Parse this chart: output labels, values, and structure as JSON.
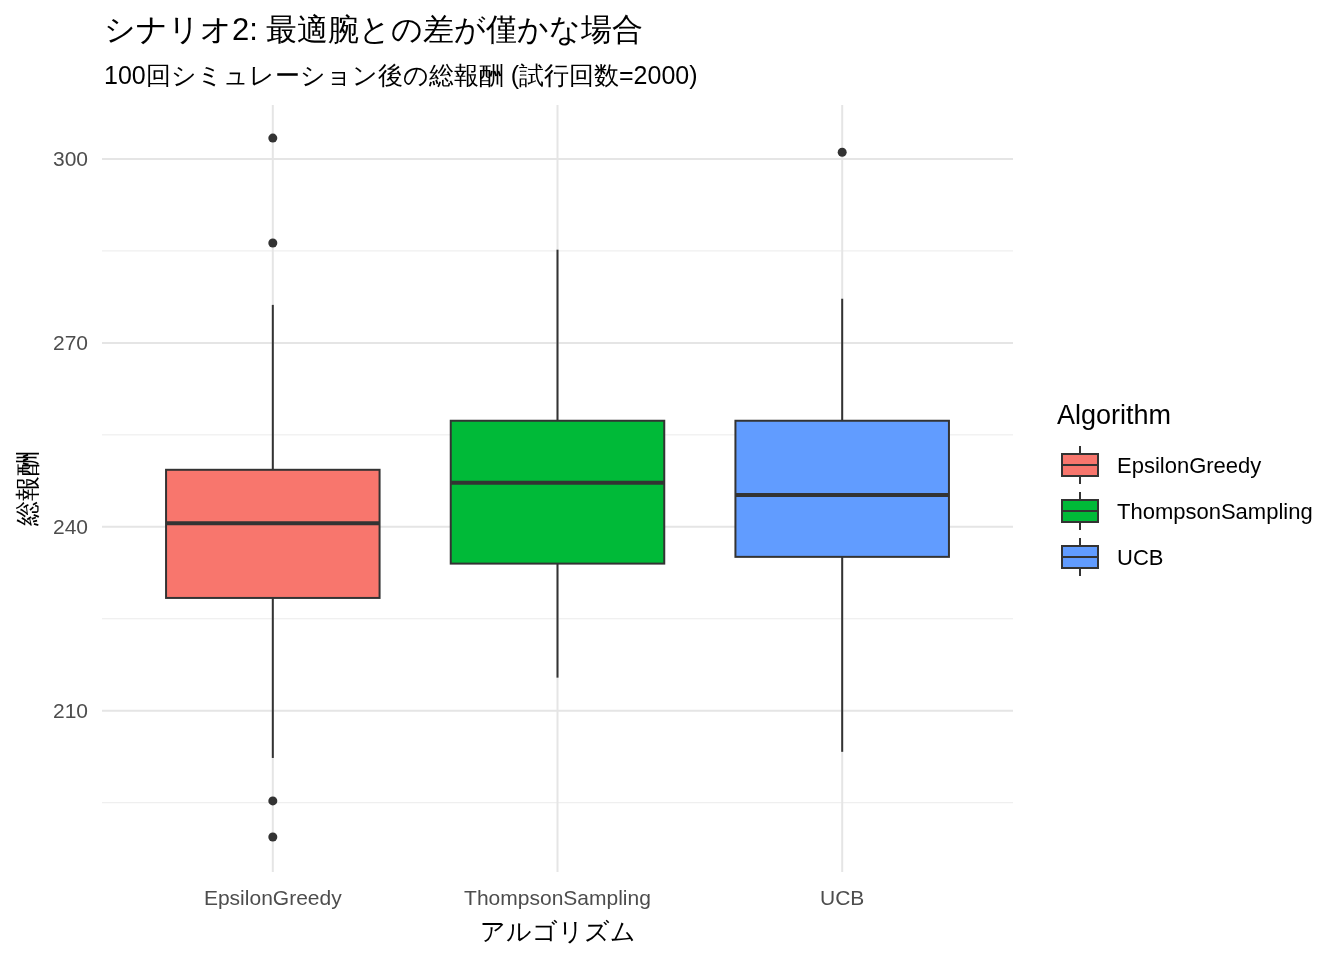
{
  "chart_data": {
    "type": "box",
    "title": "シナリオ2: 最適腕との差が僅かな場合",
    "subtitle": "100回シミュレーション後の総報酬 (試行回数=2000)",
    "xlabel": "アルゴリズム",
    "ylabel": "総報酬",
    "legend_title": "Algorithm",
    "categories": [
      "EpsilonGreedy",
      "ThompsonSampling",
      "UCB"
    ],
    "series": [
      {
        "name": "EpsilonGreedy",
        "color": "#f8766d",
        "boxes": [
          {
            "low": 202.3,
            "q1": 228.4,
            "median": 240.6,
            "q3": 249.3,
            "high": 276.2,
            "outliers": [
              303.4,
              286.3,
              195.3,
              189.4
            ]
          },
          null,
          null
        ]
      },
      {
        "name": "ThompsonSampling",
        "color": "#00ba38",
        "boxes": [
          null,
          {
            "low": 215.4,
            "q1": 234.0,
            "median": 247.2,
            "q3": 257.3,
            "high": 285.2
          },
          null
        ]
      },
      {
        "name": "UCB",
        "color": "#619cff",
        "boxes": [
          null,
          null,
          {
            "low": 203.3,
            "q1": 235.1,
            "median": 245.2,
            "q3": 257.3,
            "high": 277.2,
            "outliers": [
              301.1
            ]
          }
        ]
      }
    ],
    "ylim": [
      183.7,
      308.8
    ],
    "yticks": [
      210,
      240,
      270,
      300
    ],
    "grid": true,
    "legend": "right"
  }
}
